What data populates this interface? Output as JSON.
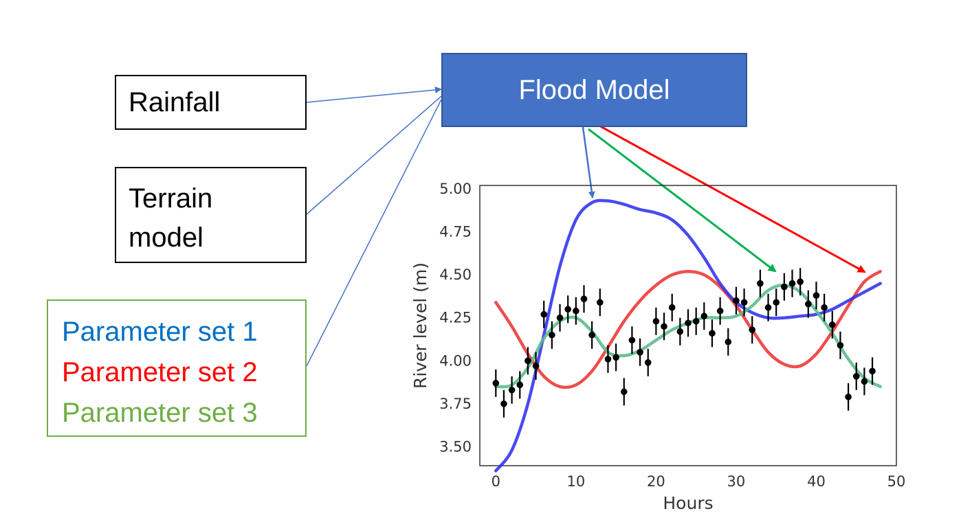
{
  "inputs": {
    "rainfall": "Rainfall",
    "terrain_line1": "Terrain",
    "terrain_line2": "model",
    "parameter_sets": [
      {
        "label": "Parameter set 1",
        "color": "#0070c0"
      },
      {
        "label": "Parameter set 2",
        "color": "#ff0000"
      },
      {
        "label": "Parameter set 3",
        "color": "#70ad47"
      }
    ]
  },
  "model": {
    "label": "Flood Model",
    "color": "#4472c4"
  },
  "chart_data": {
    "type": "line",
    "xlabel": "Hours",
    "ylabel": "River level (m)",
    "xlim": [
      -2,
      50
    ],
    "ylim": [
      3.39,
      5.02
    ],
    "xticks": [
      0,
      10,
      20,
      30,
      40,
      50
    ],
    "yticks": [
      3.5,
      3.75,
      4.0,
      4.25,
      4.5,
      4.75,
      5.0
    ],
    "ytick_labels": [
      "3.50",
      "3.75",
      "4.00",
      "4.25",
      "4.50",
      "4.75",
      "5.00"
    ],
    "grid": false,
    "observations": {
      "x": [
        0,
        1,
        2,
        3,
        4,
        5,
        6,
        7,
        8,
        9,
        10,
        11,
        12,
        13,
        14,
        15,
        16,
        17,
        18,
        19,
        20,
        21,
        22,
        23,
        24,
        25,
        26,
        27,
        28,
        29,
        30,
        31,
        32,
        33,
        34,
        35,
        36,
        37,
        38,
        39,
        40,
        41,
        42,
        43,
        44,
        45,
        46,
        47
      ],
      "y": [
        3.87,
        3.75,
        3.83,
        3.86,
        4.0,
        3.97,
        4.27,
        4.15,
        4.25,
        4.3,
        4.29,
        4.36,
        4.15,
        4.34,
        4.01,
        4.02,
        3.82,
        4.12,
        4.05,
        3.99,
        4.23,
        4.2,
        4.31,
        4.17,
        4.22,
        4.23,
        4.26,
        4.16,
        4.29,
        4.11,
        4.35,
        4.34,
        4.18,
        4.45,
        4.31,
        4.34,
        4.43,
        4.45,
        4.46,
        4.33,
        4.38,
        4.31,
        4.21,
        4.09,
        3.79,
        3.91,
        3.88,
        3.94
      ],
      "error": 0.08
    },
    "series": [
      {
        "name": "Parameter set 1",
        "color": "#3030ee",
        "x": [
          0,
          2,
          4,
          6,
          8,
          10,
          12,
          14,
          16,
          18,
          20,
          22,
          24,
          26,
          28,
          30,
          32,
          34,
          36,
          38,
          40,
          42,
          44,
          46,
          48
        ],
        "y": [
          3.36,
          3.48,
          3.75,
          4.15,
          4.55,
          4.82,
          4.92,
          4.93,
          4.91,
          4.88,
          4.86,
          4.82,
          4.73,
          4.6,
          4.45,
          4.34,
          4.28,
          4.25,
          4.25,
          4.26,
          4.27,
          4.3,
          4.35,
          4.4,
          4.45
        ]
      },
      {
        "name": "Parameter set 2",
        "color": "#ee3333",
        "x": [
          0,
          2,
          4,
          6,
          8,
          10,
          12,
          14,
          16,
          18,
          20,
          22,
          24,
          26,
          28,
          30,
          32,
          34,
          36,
          38,
          40,
          42,
          44,
          46,
          48
        ],
        "y": [
          4.34,
          4.2,
          4.04,
          3.91,
          3.85,
          3.86,
          3.94,
          4.08,
          4.23,
          4.35,
          4.44,
          4.5,
          4.52,
          4.5,
          4.43,
          4.32,
          4.18,
          4.05,
          3.98,
          3.97,
          4.04,
          4.17,
          4.32,
          4.46,
          4.52
        ]
      },
      {
        "name": "Parameter set 3",
        "color": "#5ab98a",
        "x": [
          0,
          2,
          4,
          6,
          8,
          10,
          12,
          14,
          16,
          18,
          20,
          22,
          24,
          26,
          28,
          30,
          32,
          34,
          36,
          38,
          40,
          42,
          44,
          46,
          48
        ],
        "y": [
          3.85,
          3.86,
          3.96,
          4.13,
          4.23,
          4.25,
          4.17,
          4.05,
          4.03,
          4.06,
          4.12,
          4.18,
          4.22,
          4.25,
          4.25,
          4.26,
          4.32,
          4.41,
          4.44,
          4.4,
          4.29,
          4.16,
          4.01,
          3.9,
          3.85
        ]
      }
    ]
  }
}
